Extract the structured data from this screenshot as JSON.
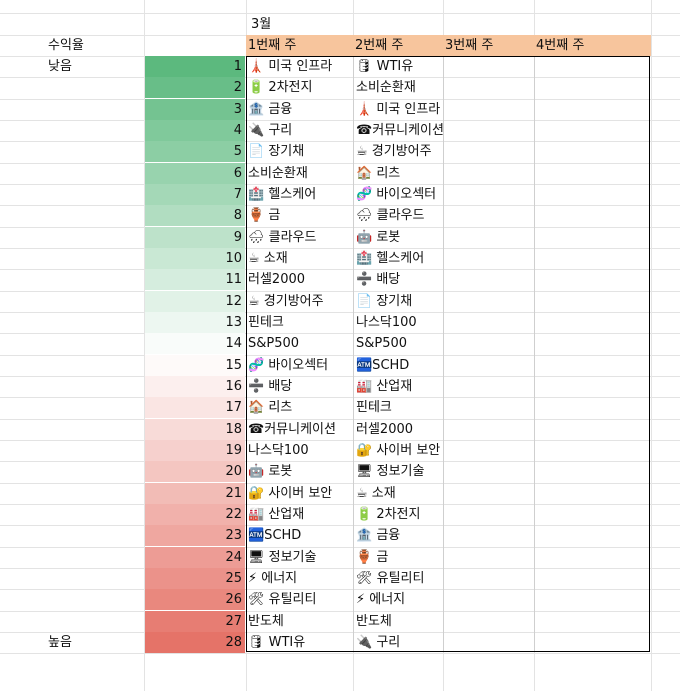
{
  "month": "3월",
  "yield_label": "수익율",
  "low_label": "낮음",
  "high_label": "높음",
  "weeks": [
    "1번째 주",
    "2번째 주",
    "3번째 주",
    "4번째 주"
  ],
  "rows": [
    {
      "rank": "1",
      "w1": "🗼 미국 인프라",
      "w2": "🛢 WTI유"
    },
    {
      "rank": "2",
      "w1": "🔋 2차전지",
      "w2": "소비순환재"
    },
    {
      "rank": "3",
      "w1": "🏦 금융",
      "w2": "🗼 미국 인프라"
    },
    {
      "rank": "4",
      "w1": "🔌 구리",
      "w2": "☎커뮤니케이션"
    },
    {
      "rank": "5",
      "w1": "📄 장기채",
      "w2": "☕ 경기방어주"
    },
    {
      "rank": "6",
      "w1": "소비순환재",
      "w2": "🏠 리츠"
    },
    {
      "rank": "7",
      "w1": "🏥 헬스케어",
      "w2": "🧬 바이오섹터"
    },
    {
      "rank": "8",
      "w1": "🏺 금",
      "w2": "🌧 클라우드"
    },
    {
      "rank": "9",
      "w1": "🌧 클라우드",
      "w2": "🤖 로봇"
    },
    {
      "rank": "10",
      "w1": "☕ 소재",
      "w2": "🏥 헬스케어"
    },
    {
      "rank": "11",
      "w1": "러셀2000",
      "w2": "➗ 배당"
    },
    {
      "rank": "12",
      "w1": "☕ 경기방어주",
      "w2": "📄 장기채"
    },
    {
      "rank": "13",
      "w1": "핀테크",
      "w2": "나스닥100"
    },
    {
      "rank": "14",
      "w1": "S&P500",
      "w2": "S&P500"
    },
    {
      "rank": "15",
      "w1": "🧬 바이오섹터",
      "w2": "🏧SCHD"
    },
    {
      "rank": "16",
      "w1": "➗ 배당",
      "w2": "🏭 산업재"
    },
    {
      "rank": "17",
      "w1": "🏠 리츠",
      "w2": "핀테크"
    },
    {
      "rank": "18",
      "w1": "☎커뮤니케이션",
      "w2": "러셀2000"
    },
    {
      "rank": "19",
      "w1": "나스닥100",
      "w2": "🔐 사이버 보안"
    },
    {
      "rank": "20",
      "w1": "🤖 로봇",
      "w2": "🖥 정보기술"
    },
    {
      "rank": "21",
      "w1": "🔐 사이버 보안",
      "w2": "☕ 소재"
    },
    {
      "rank": "22",
      "w1": "🏭 산업재",
      "w2": "🔋 2차전지"
    },
    {
      "rank": "23",
      "w1": "🏧SCHD",
      "w2": "🏦 금융"
    },
    {
      "rank": "24",
      "w1": "🖥 정보기술",
      "w2": "🏺 금"
    },
    {
      "rank": "25",
      "w1": "⚡ 에너지",
      "w2": "🛠 유틸리티"
    },
    {
      "rank": "26",
      "w1": "🛠 유틸리티",
      "w2": "⚡ 에너지"
    },
    {
      "rank": "27",
      "w1": "반도체",
      "w2": "반도체"
    },
    {
      "rank": "28",
      "w1": "🛢 WTI유",
      "w2": "🔌 구리"
    }
  ],
  "colors": {
    "header_fill": "#f7c59d",
    "low_fill": "#5cb97e",
    "mid_fill": "#ffffff",
    "high_fill": "#e57368"
  }
}
